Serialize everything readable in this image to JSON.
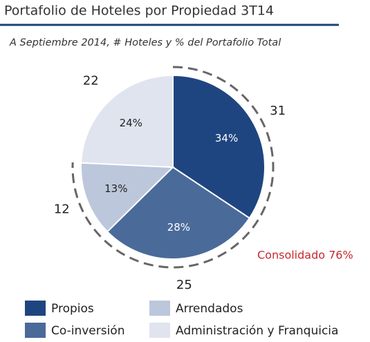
{
  "chart_data": {
    "type": "pie",
    "title": "Portafolio de Hoteles por Propiedad 3T14",
    "subtitle": "A Septiembre 2014, # Hoteles y % del Portafolio Total",
    "categories": [
      "Propios",
      "Co-inversión",
      "Arrendados",
      "Administración y Franquicia"
    ],
    "values": [
      34,
      28,
      13,
      24
    ],
    "value_labels": [
      "34%",
      "28%",
      "13%",
      "24%"
    ],
    "hotel_counts": [
      31,
      25,
      12,
      22
    ],
    "colors": [
      "#1f4580",
      "#4a6a9a",
      "#bcc7dc",
      "#dfe4ee"
    ],
    "annotation": "Consolidado 76%"
  }
}
